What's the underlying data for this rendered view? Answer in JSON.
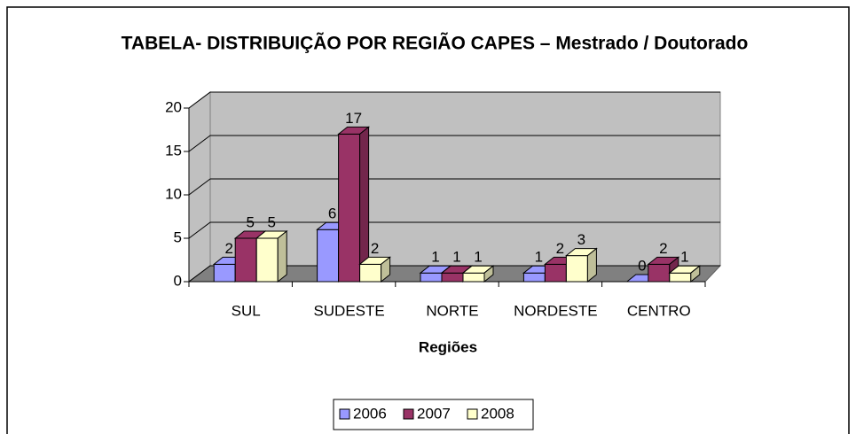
{
  "chart_data": {
    "type": "bar",
    "title": "TABELA- DISTRIBUIÇÃO POR REGIÃO CAPES – Mestrado / Doutorado",
    "x_label": "Regiões",
    "categories": [
      "SUL",
      "SUDESTE",
      "NORTE",
      "NORDESTE",
      "CENTRO"
    ],
    "series": [
      {
        "name": "2006",
        "color": "#9999ff",
        "values": [
          2,
          6,
          1,
          1,
          0
        ]
      },
      {
        "name": "2007",
        "color": "#993366",
        "values": [
          5,
          17,
          1,
          2,
          2
        ]
      },
      {
        "name": "2008",
        "color": "#ffffcc",
        "values": [
          5,
          2,
          1,
          3,
          1
        ]
      }
    ],
    "ylim": [
      0,
      20
    ],
    "yticks": [
      0,
      5,
      10,
      15,
      20
    ],
    "grid": true,
    "legend": "bottom"
  }
}
